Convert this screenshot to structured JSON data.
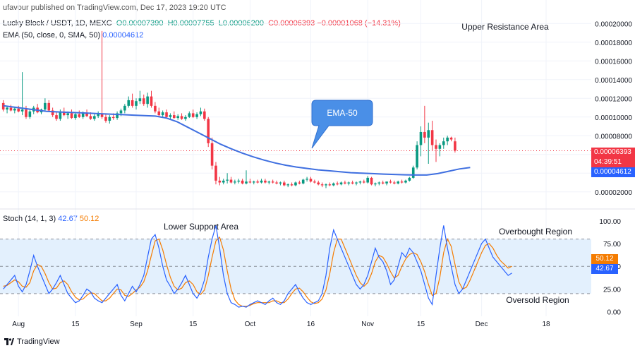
{
  "header": {
    "published": "ufavour published on TradingView.com, Dec 17, 2023 19:20 UTC",
    "symbol": "Lucky Block / USDT, 1D, MEXC",
    "ohlc": {
      "o_label": "O",
      "o": "0.00007390",
      "h_label": "H",
      "h": "0.00007755",
      "l_label": "L",
      "l": "0.00006200",
      "c_label": "C",
      "c": "0.00006393",
      "change": "−0.00001068 (−14.31%)"
    },
    "ema_label": "EMA (50, close, 0, SMA, 50)",
    "ema_value": "0.00004612"
  },
  "price_tags": {
    "last": "0.00006393",
    "countdown": "04:39:51",
    "ema": "0.00004612"
  },
  "oscillator": {
    "label": "Stoch (14, 1, 3)",
    "k": "42.67",
    "d": "50.12"
  },
  "annotations": {
    "upper_resistance": "Upper Resistance Area",
    "ema50": "EMA-50",
    "lower_support": "Lower Support Area",
    "overbought": "Overbought Region",
    "oversold": "Oversold Region"
  },
  "footer": {
    "brand": "TradingView"
  },
  "colors": {
    "up": "#089981",
    "down": "#f23645",
    "ema": "#2962ff",
    "stoch_k": "#2962ff",
    "stoch_d": "#f57c00",
    "band": "#e3f0fd"
  },
  "chart_data": [
    {
      "type": "candlestick",
      "title": "Lucky Block / USDT, 1D, MEXC",
      "y_axis_ticks": [
        2e-05,
        4e-05,
        6e-05,
        8e-05,
        0.0001,
        0.00012,
        0.00014,
        0.00016,
        0.00018,
        0.0002
      ],
      "y_tick_labels": [
        "0.00002000",
        "0.00004000",
        "0.00006000",
        "0.00008000",
        "0.00010000",
        "0.00012000",
        "0.00014000",
        "0.00016000",
        "0.00018000",
        "0.00020000"
      ],
      "ylim": [
        1e-05,
        0.00021
      ],
      "x_tick_labels": [
        "Aug",
        "15",
        "Sep",
        "15",
        "Oct",
        "16",
        "Nov",
        "15",
        "Dec",
        "18"
      ],
      "x_tick_days": [
        4,
        19,
        35,
        50,
        65,
        81,
        96,
        110,
        126,
        143
      ],
      "candles": [
        [
          0.000115,
          0.000118,
          0.000106,
          0.000108
        ],
        [
          0.000108,
          0.000112,
          0.000104,
          0.00011
        ],
        [
          0.00011,
          0.000113,
          0.000106,
          0.000107
        ],
        [
          0.000107,
          0.000111,
          0.000104,
          0.000109
        ],
        [
          0.000109,
          0.000112,
          0.000105,
          0.000106
        ],
        [
          0.000106,
          0.000148,
          0.000102,
          0.000108
        ],
        [
          0.000108,
          0.000112,
          9.8e-05,
          0.0001
        ],
        [
          0.0001,
          0.000108,
          9.8e-05,
          0.000106
        ],
        [
          0.000106,
          0.000112,
          0.000103,
          0.00011
        ],
        [
          0.00011,
          0.000114,
          0.000104,
          0.000105
        ],
        [
          0.000105,
          0.000109,
          0.000103,
          0.000108
        ],
        [
          0.000108,
          0.00012,
          0.000106,
          0.000115
        ],
        [
          0.000115,
          0.000118,
          0.000106,
          0.000107
        ],
        [
          0.000107,
          0.00011,
          0.0001,
          0.000102
        ],
        [
          0.000102,
          0.000106,
          9.6e-05,
          9.8e-05
        ],
        [
          9.8e-05,
          0.000108,
          9.6e-05,
          0.000105
        ],
        [
          0.000105,
          0.00011,
          0.000101,
          0.000102
        ],
        [
          0.000102,
          0.000106,
          9.8e-05,
          0.000104
        ],
        [
          0.000104,
          0.000108,
          9.8e-05,
          9.9e-05
        ],
        [
          9.9e-05,
          0.000105,
          9.7e-05,
          0.000103
        ],
        [
          0.000103,
          0.000107,
          9.9e-05,
          0.0001
        ],
        [
          0.0001,
          0.000106,
          9.8e-05,
          0.000104
        ],
        [
          0.000104,
          0.000108,
          0.0001,
          0.000101
        ],
        [
          0.000101,
          0.000105,
          9.7e-05,
          9.8e-05
        ],
        [
          9.8e-05,
          0.000103,
          9.6e-05,
          0.000101
        ],
        [
          0.000101,
          0.000106,
          9.9e-05,
          0.000103
        ],
        [
          0.000103,
          0.000192,
          9.8e-05,
          0.0001
        ],
        [
          0.0001,
          0.000104,
          9.4e-05,
          9.6e-05
        ],
        [
          9.6e-05,
          0.000102,
          9.3e-05,
          0.0001
        ],
        [
          0.0001,
          0.000104,
          9.7e-05,
          9.9e-05
        ],
        [
          9.9e-05,
          0.000106,
          9.7e-05,
          0.000104
        ],
        [
          0.000104,
          0.000109,
          0.000101,
          0.000107
        ],
        [
          0.000107,
          0.000114,
          0.000104,
          0.000112
        ],
        [
          0.000112,
          0.000122,
          0.00011,
          0.000118
        ],
        [
          0.000118,
          0.000125,
          0.00011,
          0.000112
        ],
        [
          0.000112,
          0.00012,
          0.000108,
          0.000117
        ],
        [
          0.000117,
          0.000128,
          0.000114,
          0.00012
        ],
        [
          0.00012,
          0.000124,
          0.000112,
          0.000114
        ],
        [
          0.000114,
          0.000126,
          0.00011,
          0.000122
        ],
        [
          0.000122,
          0.000128,
          0.00011,
          0.000112
        ],
        [
          0.000112,
          0.000116,
          0.000104,
          0.000106
        ],
        [
          0.000106,
          0.00011,
          0.0001,
          0.000102
        ],
        [
          0.000102,
          0.000107,
          9.9e-05,
          0.000105
        ],
        [
          0.000105,
          0.000108,
          9.9e-05,
          0.0001
        ],
        [
          0.0001,
          0.000104,
          9.7e-05,
          0.000102
        ],
        [
          0.000102,
          0.000106,
          9.8e-05,
          9.9e-05
        ],
        [
          9.9e-05,
          0.000103,
          9.7e-05,
          0.000101
        ],
        [
          0.000101,
          0.000104,
          9.7e-05,
          9.8e-05
        ],
        [
          9.8e-05,
          0.000102,
          9.6e-05,
          0.0001
        ],
        [
          0.0001,
          0.000106,
          9.9e-05,
          0.000104
        ],
        [
          0.000104,
          0.000108,
          9.9e-05,
          0.0001
        ],
        [
          0.0001,
          0.000105,
          9.8e-05,
          0.000103
        ],
        [
          0.000103,
          0.00011,
          0.000101,
          0.000106
        ],
        [
          0.000106,
          0.000109,
          9.6e-05,
          9.8e-05
        ],
        [
          9.8e-05,
          0.0001,
          6.8e-05,
          7.2e-05
        ],
        [
          7.2e-05,
          7.8e-05,
          4.4e-05,
          4.8e-05
        ],
        [
          4.8e-05,
          5.2e-05,
          2.8e-05,
          3.2e-05
        ],
        [
          3.2e-05,
          3.6e-05,
          2.7e-05,
          3e-05
        ],
        [
          3e-05,
          3.4e-05,
          2.8e-05,
          3.2e-05
        ],
        [
          3.2e-05,
          4e-05,
          2.9e-05,
          3.3e-05
        ],
        [
          3.3e-05,
          3.6e-05,
          2.9e-05,
          3e-05
        ],
        [
          3e-05,
          3.3e-05,
          2.8e-05,
          3.1e-05
        ],
        [
          3.1e-05,
          3.4e-05,
          2.9e-05,
          3.2e-05
        ],
        [
          3.2e-05,
          3.4e-05,
          2.8e-05,
          2.9e-05
        ],
        [
          2.9e-05,
          4.3e-05,
          2.8e-05,
          3.1e-05
        ],
        [
          3.1e-05,
          3.4e-05,
          2.9e-05,
          3e-05
        ],
        [
          3e-05,
          3.2e-05,
          2.8e-05,
          3.1e-05
        ],
        [
          3.1e-05,
          3.3e-05,
          2.9e-05,
          3e-05
        ],
        [
          3e-05,
          3.4e-05,
          2.9e-05,
          3.2e-05
        ],
        [
          3.2e-05,
          3.4e-05,
          2.9e-05,
          3e-05
        ],
        [
          3e-05,
          3.2e-05,
          2.8e-05,
          3.1e-05
        ],
        [
          3.1e-05,
          3.3e-05,
          2.9e-05,
          3e-05
        ],
        [
          3e-05,
          3.2e-05,
          2.8e-05,
          2.9e-05
        ],
        [
          2.9e-05,
          3.1e-05,
          2.7e-05,
          3e-05
        ],
        [
          3e-05,
          3.2e-05,
          2.6e-05,
          2.7e-05
        ],
        [
          2.7e-05,
          2.9e-05,
          2.5e-05,
          2.8e-05
        ],
        [
          2.8e-05,
          3e-05,
          2.6e-05,
          2.7e-05
        ],
        [
          2.7e-05,
          3.1e-05,
          2.6e-05,
          3e-05
        ],
        [
          3e-05,
          3.2e-05,
          2.8e-05,
          2.9e-05
        ],
        [
          2.9e-05,
          3.4e-05,
          2.8e-05,
          3.3e-05
        ],
        [
          3.3e-05,
          3.6e-05,
          3.1e-05,
          3.4e-05
        ],
        [
          3.4e-05,
          3.6e-05,
          3e-05,
          3.1e-05
        ],
        [
          3.1e-05,
          3.3e-05,
          2.9e-05,
          3e-05
        ],
        [
          3e-05,
          3.2e-05,
          2.7e-05,
          2.8e-05
        ],
        [
          2.8e-05,
          3e-05,
          2.5e-05,
          2.7e-05
        ],
        [
          2.7e-05,
          2.9e-05,
          2.4e-05,
          2.8e-05
        ],
        [
          2.8e-05,
          3e-05,
          2.6e-05,
          2.7e-05
        ],
        [
          2.7e-05,
          3e-05,
          2.6e-05,
          2.9e-05
        ],
        [
          2.9e-05,
          3.1e-05,
          2.7e-05,
          2.8e-05
        ],
        [
          2.8e-05,
          3.1e-05,
          2.7e-05,
          3e-05
        ],
        [
          3e-05,
          3.2e-05,
          2.8e-05,
          2.9e-05
        ],
        [
          2.9e-05,
          3.1e-05,
          2.7e-05,
          3e-05
        ],
        [
          3e-05,
          3.2e-05,
          2.8e-05,
          2.9e-05
        ],
        [
          2.9e-05,
          3.1e-05,
          2.7e-05,
          3e-05
        ],
        [
          3e-05,
          3.2e-05,
          2.8e-05,
          3.1e-05
        ],
        [
          3.1e-05,
          3.3e-05,
          2.9e-05,
          3e-05
        ],
        [
          3e-05,
          3.7e-05,
          2.9e-05,
          3.5e-05
        ],
        [
          3.5e-05,
          3.6e-05,
          2.7e-05,
          2.8e-05
        ],
        [
          2.8e-05,
          3e-05,
          2.6e-05,
          2.9e-05
        ],
        [
          2.9e-05,
          3.1e-05,
          2.7e-05,
          3e-05
        ],
        [
          3e-05,
          3.2e-05,
          2.8e-05,
          2.9e-05
        ],
        [
          2.9e-05,
          3.1e-05,
          2.7e-05,
          3.1e-05
        ],
        [
          3.1e-05,
          3.3e-05,
          2.9e-05,
          3e-05
        ],
        [
          3e-05,
          3.2e-05,
          2.8e-05,
          2.9e-05
        ],
        [
          2.9e-05,
          3.2e-05,
          2.8e-05,
          3.1e-05
        ],
        [
          3.1e-05,
          3.3e-05,
          2.9e-05,
          3e-05
        ],
        [
          3e-05,
          3.3e-05,
          2.9e-05,
          3.2e-05
        ],
        [
          3.2e-05,
          3.6e-05,
          3.1e-05,
          3.5e-05
        ],
        [
          3.5e-05,
          4.8e-05,
          3.4e-05,
          4.6e-05
        ],
        [
          4.6e-05,
          7.4e-05,
          4.4e-05,
          7e-05
        ],
        [
          7e-05,
          9e-05,
          5.8e-05,
          8.4e-05
        ],
        [
          8.4e-05,
          0.000112,
          7.2e-05,
          7.8e-05
        ],
        [
          7.8e-05,
          9.4e-05,
          5e-05,
          8.6e-05
        ],
        [
          8.6e-05,
          9.6e-05,
          6.4e-05,
          7e-05
        ],
        [
          7e-05,
          7.6e-05,
          5.2e-05,
          6.6e-05
        ],
        [
          6.6e-05,
          7.2e-05,
          5.8e-05,
          7e-05
        ],
        [
          7e-05,
          7.8e-05,
          6.6e-05,
          7.4e-05
        ],
        [
          7.4e-05,
          8e-05,
          7e-05,
          7.8e-05
        ],
        [
          7.8e-05,
          7.9e-05,
          7.4e-05,
          7.6e-05
        ],
        [
          7.4e-05,
          7.8e-05,
          6.2e-05,
          6.4e-05
        ]
      ],
      "ema50": {
        "name": "EMA (50, close, 0, SMA, 50)",
        "values": [
          0.000112,
          0.0001105,
          0.000109,
          0.0001075,
          0.000106,
          0.0001055,
          0.000105,
          0.0001045,
          0.000104,
          0.0001035,
          0.000103,
          0.0001025,
          0.000102,
          0.0001015,
          0.000101,
          9.9e-05,
          9.5e-05,
          8.9e-05,
          8.3e-05,
          7.7e-05,
          7.1e-05,
          6.6e-05,
          6.15e-05,
          5.75e-05,
          5.4e-05,
          5.1e-05,
          4.85e-05,
          4.65e-05,
          4.5e-05,
          4.35e-05,
          4.25e-05,
          4.15e-05,
          4.05e-05,
          4e-05,
          3.95e-05,
          3.9e-05,
          3.86e-05,
          3.82e-05,
          3.8e-05,
          3.8e-05,
          3.95e-05,
          4.2e-05,
          4.45e-05,
          4.61e-05
        ]
      }
    },
    {
      "type": "line",
      "title": "Stoch (14, 1, 3)",
      "ylim": [
        -5,
        110
      ],
      "y_ticks": [
        0,
        25,
        50,
        75,
        100
      ],
      "y_tick_labels": [
        "0.00",
        "25.00",
        "50.00",
        "75.00",
        "100.00"
      ],
      "bands": [
        20,
        80
      ],
      "series": [
        {
          "name": "%K",
          "values": [
            25,
            30,
            35,
            40,
            28,
            22,
            30,
            45,
            62,
            50,
            40,
            30,
            20,
            25,
            32,
            40,
            30,
            20,
            15,
            10,
            12,
            18,
            25,
            22,
            15,
            12,
            10,
            15,
            20,
            25,
            30,
            18,
            12,
            20,
            28,
            22,
            30,
            40,
            60,
            80,
            85,
            70,
            50,
            35,
            28,
            20,
            25,
            32,
            40,
            30,
            20,
            15,
            22,
            35,
            60,
            80,
            95,
            70,
            40,
            20,
            10,
            8,
            5,
            6,
            5,
            8,
            10,
            12,
            10,
            8,
            12,
            15,
            10,
            8,
            12,
            20,
            25,
            30,
            22,
            15,
            10,
            8,
            10,
            12,
            20,
            40,
            70,
            90,
            80,
            70,
            60,
            50,
            40,
            30,
            25,
            30,
            40,
            55,
            70,
            60,
            55,
            45,
            30,
            35,
            50,
            65,
            60,
            70,
            65,
            55,
            45,
            30,
            15,
            8,
            40,
            70,
            95,
            70,
            50,
            30,
            20,
            25,
            35,
            45,
            55,
            65,
            75,
            80,
            70,
            60,
            55,
            50,
            45,
            40,
            42.67
          ]
        },
        {
          "name": "%D",
          "values": [
            28,
            29,
            32,
            35,
            33,
            28,
            27,
            32,
            45,
            52,
            50,
            42,
            32,
            25,
            26,
            32,
            34,
            30,
            22,
            16,
            13,
            14,
            18,
            21,
            20,
            16,
            12,
            12,
            15,
            20,
            25,
            24,
            18,
            17,
            20,
            24,
            27,
            33,
            45,
            62,
            78,
            80,
            68,
            52,
            38,
            28,
            24,
            26,
            32,
            34,
            30,
            22,
            19,
            24,
            40,
            60,
            78,
            82,
            68,
            45,
            25,
            13,
            8,
            6,
            6,
            7,
            9,
            10,
            10,
            10,
            10,
            12,
            12,
            10,
            10,
            14,
            20,
            25,
            26,
            22,
            16,
            11,
            9,
            10,
            14,
            24,
            42,
            65,
            80,
            80,
            70,
            60,
            50,
            40,
            32,
            28,
            32,
            42,
            55,
            62,
            60,
            53,
            44,
            37,
            40,
            50,
            58,
            63,
            65,
            63,
            55,
            44,
            30,
            18,
            20,
            38,
            65,
            80,
            72,
            52,
            33,
            25,
            27,
            35,
            45,
            55,
            65,
            73,
            75,
            70,
            62,
            56,
            52,
            48,
            50.12
          ]
        }
      ]
    }
  ]
}
